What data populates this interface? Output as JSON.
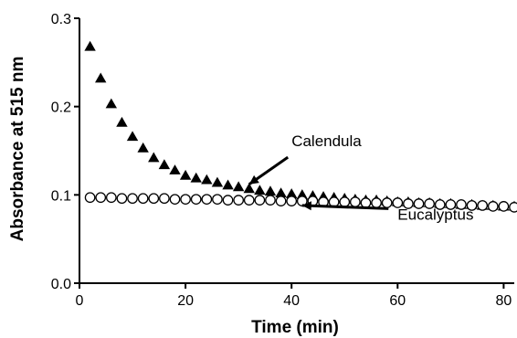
{
  "chart_data": {
    "type": "scatter",
    "title": "",
    "xlabel": "Time (min)",
    "ylabel": "Absorbance at 515 nm",
    "xlim": [
      0,
      82
    ],
    "ylim": [
      0.0,
      0.3
    ],
    "x_ticks": [
      "0",
      "20",
      "40",
      "60",
      "80"
    ],
    "y_ticks": [
      "0.0",
      "0.1",
      "0.2",
      "0.3"
    ],
    "grid": false,
    "series": [
      {
        "name": "Calendula",
        "marker": "filled-triangle",
        "color": "#000000",
        "x": [
          2,
          4,
          6,
          8,
          10,
          12,
          14,
          16,
          18,
          20,
          22,
          24,
          26,
          28,
          30,
          32,
          34,
          36,
          38,
          40,
          42,
          44,
          46,
          48,
          50,
          52,
          54,
          56,
          58,
          60,
          62,
          64,
          66,
          68,
          70,
          72,
          74,
          76,
          78,
          80,
          82
        ],
        "y": [
          0.268,
          0.232,
          0.203,
          0.182,
          0.166,
          0.153,
          0.142,
          0.134,
          0.128,
          0.122,
          0.119,
          0.117,
          0.114,
          0.111,
          0.109,
          0.107,
          0.105,
          0.104,
          0.102,
          0.101,
          0.1,
          0.099,
          0.098,
          0.097,
          0.096,
          0.095,
          0.094,
          0.094,
          0.093,
          0.092,
          0.092,
          0.091,
          0.091,
          0.09,
          0.09,
          0.089,
          0.089,
          0.088,
          0.088,
          0.087,
          0.087
        ]
      },
      {
        "name": "Eucalyptus",
        "marker": "open-circle",
        "color": "#000000",
        "x": [
          2,
          4,
          6,
          8,
          10,
          12,
          14,
          16,
          18,
          20,
          22,
          24,
          26,
          28,
          30,
          32,
          34,
          36,
          38,
          40,
          42,
          44,
          46,
          48,
          50,
          52,
          54,
          56,
          58,
          60,
          62,
          64,
          66,
          68,
          70,
          72,
          74,
          76,
          78,
          80,
          82
        ],
        "y": [
          0.097,
          0.097,
          0.097,
          0.096,
          0.096,
          0.096,
          0.096,
          0.096,
          0.095,
          0.095,
          0.095,
          0.095,
          0.095,
          0.094,
          0.094,
          0.094,
          0.094,
          0.094,
          0.093,
          0.093,
          0.093,
          0.093,
          0.092,
          0.092,
          0.092,
          0.092,
          0.091,
          0.091,
          0.091,
          0.091,
          0.09,
          0.09,
          0.09,
          0.089,
          0.089,
          0.089,
          0.088,
          0.088,
          0.087,
          0.087,
          0.086
        ]
      }
    ],
    "annotations": [
      {
        "text": "Calendula",
        "x": 40,
        "y": 0.155,
        "arrow_to": [
          32,
          0.112
        ]
      },
      {
        "text": "Eucalyptus",
        "x": 60,
        "y": 0.072,
        "arrow_to": [
          42,
          0.088
        ]
      }
    ]
  }
}
